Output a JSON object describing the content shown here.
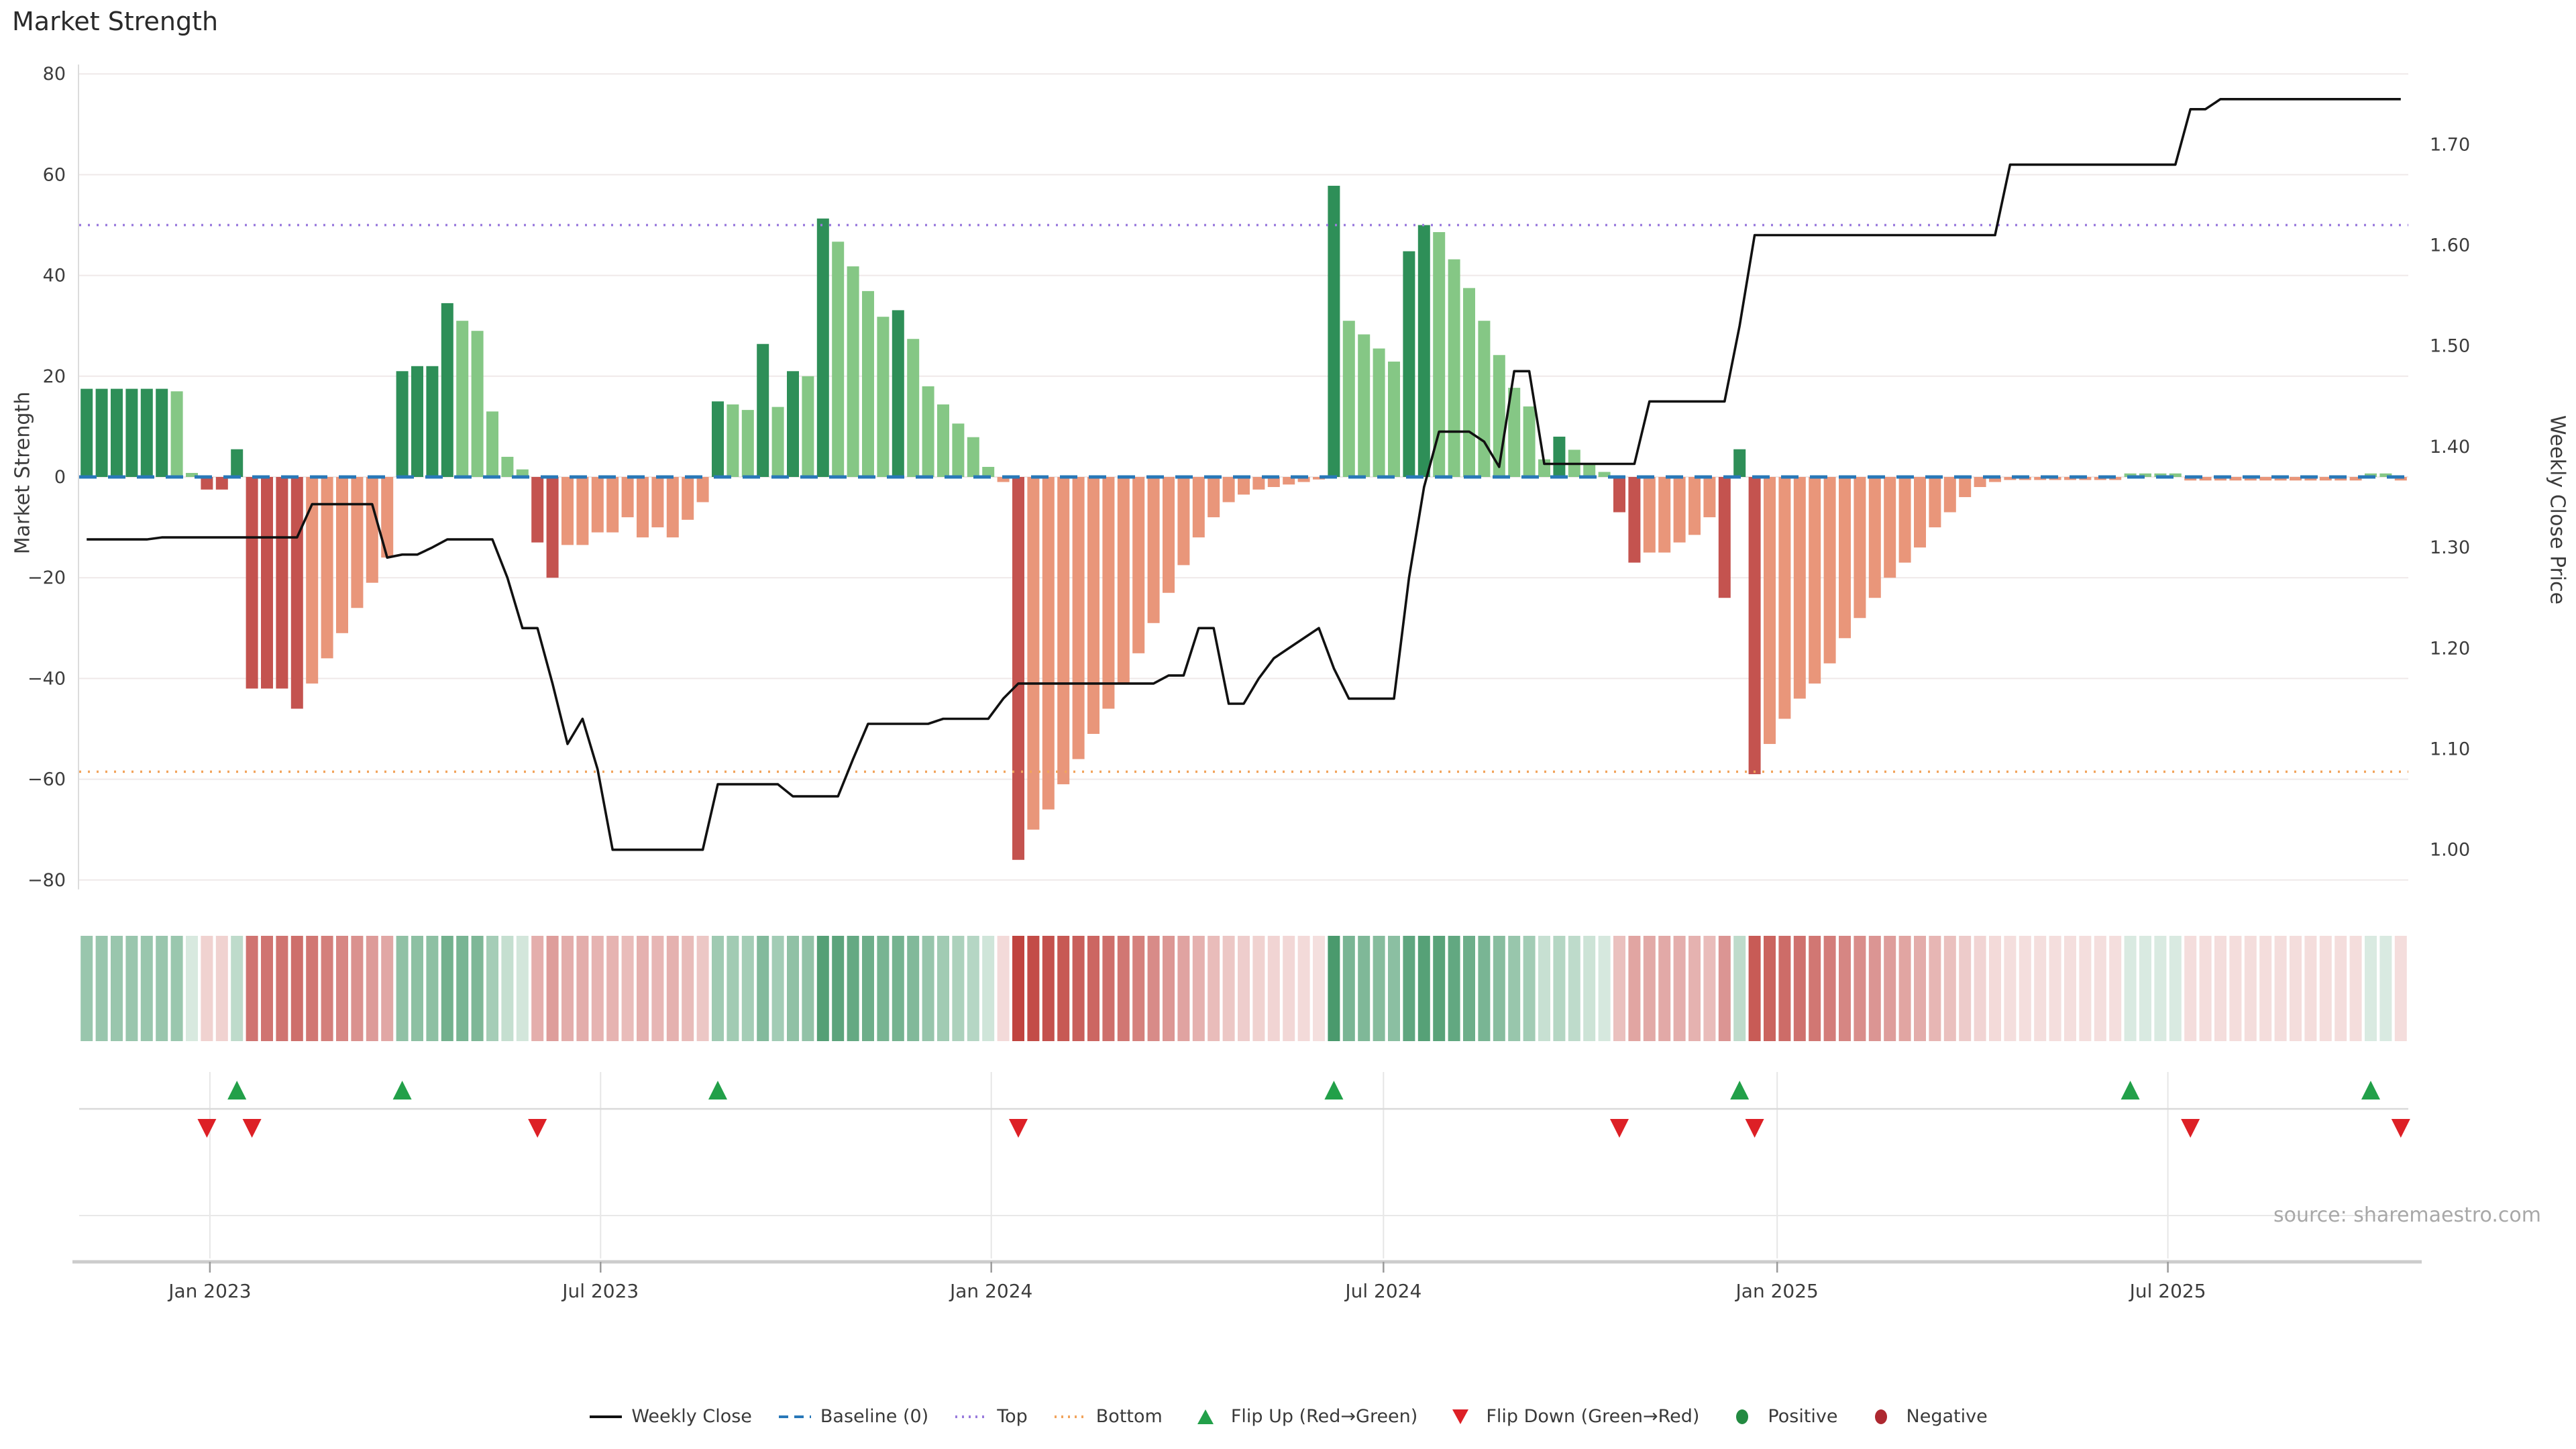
{
  "meta": {
    "title": "Market Strength",
    "source": "source: sharemaestro.com"
  },
  "axes": {
    "left_label": "Market Strength",
    "right_label": "Weekly Close Price",
    "left_ticks": [
      80,
      60,
      40,
      20,
      0,
      -20,
      -40,
      -60,
      -80
    ],
    "right_ticks": [
      "1.00",
      "1.10",
      "1.20",
      "1.30",
      "1.40",
      "1.50",
      "1.60",
      "1.70"
    ],
    "x_ticks": [
      {
        "label": "Jan 2023",
        "week": 8.7
      },
      {
        "label": "Jul 2023",
        "week": 34.7
      },
      {
        "label": "Jan 2024",
        "week": 60.7
      },
      {
        "label": "Jul 2024",
        "week": 86.8
      },
      {
        "label": "Jan 2025",
        "week": 113.0
      },
      {
        "label": "Jul 2025",
        "week": 139.0
      }
    ]
  },
  "legend": {
    "items": [
      {
        "type": "solid-line",
        "color": "#111111",
        "label": "Weekly Close"
      },
      {
        "type": "dashed-line",
        "color": "#2878b8",
        "label": "Baseline (0)"
      },
      {
        "type": "dotted-line",
        "color": "#9a7bdd",
        "label": "Top"
      },
      {
        "type": "dotted-line",
        "color": "#f2a45c",
        "label": "Bottom"
      },
      {
        "type": "triangle-up",
        "color": "#22a049",
        "label": "Flip Up (Red→Green)"
      },
      {
        "type": "triangle-down",
        "color": "#dd2026",
        "label": "Flip Down (Green→Red)"
      },
      {
        "type": "circle",
        "color": "#238a41",
        "label": "Positive"
      },
      {
        "type": "circle",
        "color": "#ad2830",
        "label": "Negative"
      }
    ]
  },
  "chart_data": {
    "type": "bar",
    "title": "Market Strength",
    "ylabel": "Market Strength",
    "y2label": "Weekly Close Price",
    "ylim": [
      -80,
      80
    ],
    "y2lim": [
      0.93,
      1.785
    ],
    "baseline": 0,
    "top_level": 50,
    "bottom_level": -58.5,
    "price_equals": "1.37 + strength/200",
    "weeks_start": "Nov 2022",
    "bars": [
      [
        17.5,
        "d"
      ],
      [
        17.5,
        "d"
      ],
      [
        17.5,
        "d"
      ],
      [
        17.5,
        "d"
      ],
      [
        17.5,
        "d"
      ],
      [
        17.5,
        "d"
      ],
      [
        17,
        "l"
      ],
      [
        0.8,
        "l"
      ],
      [
        -2.5,
        "d"
      ],
      [
        -2.5,
        "d"
      ],
      [
        5.5,
        "d"
      ],
      [
        -42,
        "d"
      ],
      [
        -42,
        "d"
      ],
      [
        -42,
        "d"
      ],
      [
        -46,
        "d"
      ],
      [
        -41,
        "l"
      ],
      [
        -36,
        "l"
      ],
      [
        -31,
        "l"
      ],
      [
        -26,
        "l"
      ],
      [
        -21,
        "l"
      ],
      [
        -16,
        "l"
      ],
      [
        21,
        "d"
      ],
      [
        22,
        "d"
      ],
      [
        22,
        "d"
      ],
      [
        34.5,
        "d"
      ],
      [
        31,
        "l"
      ],
      [
        29,
        "l"
      ],
      [
        13,
        "l"
      ],
      [
        4,
        "l"
      ],
      [
        1.5,
        "l"
      ],
      [
        -13,
        "d"
      ],
      [
        -20,
        "d"
      ],
      [
        -13.5,
        "l"
      ],
      [
        -13.5,
        "l"
      ],
      [
        -11,
        "l"
      ],
      [
        -11,
        "l"
      ],
      [
        -8,
        "l"
      ],
      [
        -12,
        "l"
      ],
      [
        -10,
        "l"
      ],
      [
        -12,
        "l"
      ],
      [
        -8.5,
        "l"
      ],
      [
        -5,
        "l"
      ],
      [
        15,
        "d"
      ],
      [
        14.4,
        "l"
      ],
      [
        13.3,
        "l"
      ],
      [
        26.4,
        "d"
      ],
      [
        13.9,
        "l"
      ],
      [
        21,
        "d"
      ],
      [
        20,
        "l"
      ],
      [
        51.3,
        "d"
      ],
      [
        46.7,
        "l"
      ],
      [
        41.8,
        "l"
      ],
      [
        36.9,
        "l"
      ],
      [
        31.8,
        "l"
      ],
      [
        33.1,
        "d"
      ],
      [
        27.4,
        "l"
      ],
      [
        18,
        "l"
      ],
      [
        14.4,
        "l"
      ],
      [
        10.6,
        "l"
      ],
      [
        7.9,
        "l"
      ],
      [
        2,
        "l"
      ],
      [
        -1,
        "l"
      ],
      [
        -76,
        "d"
      ],
      [
        -70,
        "l"
      ],
      [
        -66,
        "l"
      ],
      [
        -61,
        "l"
      ],
      [
        -56,
        "l"
      ],
      [
        -51,
        "l"
      ],
      [
        -46,
        "l"
      ],
      [
        -41,
        "l"
      ],
      [
        -35,
        "l"
      ],
      [
        -29,
        "l"
      ],
      [
        -23,
        "l"
      ],
      [
        -17.5,
        "l"
      ],
      [
        -12,
        "l"
      ],
      [
        -8,
        "l"
      ],
      [
        -5,
        "l"
      ],
      [
        -3.5,
        "l"
      ],
      [
        -2.5,
        "l"
      ],
      [
        -2,
        "l"
      ],
      [
        -1.5,
        "l"
      ],
      [
        -1,
        "l"
      ],
      [
        -0.5,
        "l"
      ],
      [
        57.8,
        "d"
      ],
      [
        31,
        "l"
      ],
      [
        28.3,
        "l"
      ],
      [
        25.5,
        "l"
      ],
      [
        22.9,
        "l"
      ],
      [
        44.8,
        "d"
      ],
      [
        50,
        "d"
      ],
      [
        48.6,
        "l"
      ],
      [
        43.2,
        "l"
      ],
      [
        37.5,
        "l"
      ],
      [
        31,
        "l"
      ],
      [
        24.2,
        "l"
      ],
      [
        17.7,
        "l"
      ],
      [
        14,
        "l"
      ],
      [
        3.5,
        "l"
      ],
      [
        8,
        "d"
      ],
      [
        5.4,
        "l"
      ],
      [
        2.5,
        "l"
      ],
      [
        1,
        "l"
      ],
      [
        -7,
        "d"
      ],
      [
        -17,
        "d"
      ],
      [
        -15,
        "l"
      ],
      [
        -15,
        "l"
      ],
      [
        -13,
        "l"
      ],
      [
        -11.5,
        "l"
      ],
      [
        -8,
        "l"
      ],
      [
        -24,
        "d"
      ],
      [
        5.5,
        "d"
      ],
      [
        -59,
        "d"
      ],
      [
        -53,
        "l"
      ],
      [
        -48,
        "l"
      ],
      [
        -44,
        "l"
      ],
      [
        -41,
        "l"
      ],
      [
        -37,
        "l"
      ],
      [
        -32,
        "l"
      ],
      [
        -28,
        "l"
      ],
      [
        -24,
        "l"
      ],
      [
        -20,
        "l"
      ],
      [
        -17,
        "l"
      ],
      [
        -14,
        "l"
      ],
      [
        -10,
        "l"
      ],
      [
        -7,
        "l"
      ],
      [
        -4,
        "l"
      ],
      [
        -2,
        "l"
      ],
      [
        -1,
        "l"
      ],
      [
        -0.6,
        "l"
      ],
      [
        -0.6,
        "l"
      ],
      [
        -0.6,
        "l"
      ],
      [
        -0.6,
        "l"
      ],
      [
        -0.6,
        "l"
      ],
      [
        -0.6,
        "l"
      ],
      [
        -0.6,
        "l"
      ],
      [
        -0.6,
        "l"
      ],
      [
        0.7,
        "l"
      ],
      [
        0.7,
        "l"
      ],
      [
        0.7,
        "l"
      ],
      [
        0.7,
        "l"
      ],
      [
        -0.7,
        "l"
      ],
      [
        -0.7,
        "l"
      ],
      [
        -0.7,
        "l"
      ],
      [
        -0.7,
        "l"
      ],
      [
        -0.7,
        "l"
      ],
      [
        -0.7,
        "l"
      ],
      [
        -0.7,
        "l"
      ],
      [
        -0.7,
        "l"
      ],
      [
        -0.7,
        "l"
      ],
      [
        -0.7,
        "l"
      ],
      [
        -0.7,
        "l"
      ],
      [
        -0.7,
        "l"
      ],
      [
        0.7,
        "l"
      ],
      [
        0.7,
        "l"
      ],
      [
        -0.7,
        "l"
      ]
    ],
    "weekly_close": [
      1.308,
      1.308,
      1.308,
      1.308,
      1.308,
      1.31,
      1.31,
      1.31,
      1.31,
      1.31,
      1.31,
      1.31,
      1.31,
      1.31,
      1.31,
      1.343,
      1.343,
      1.343,
      1.343,
      1.343,
      1.29,
      1.293,
      1.293,
      1.3,
      1.308,
      1.308,
      1.308,
      1.308,
      1.27,
      1.22,
      1.22,
      1.165,
      1.105,
      1.13,
      1.08,
      1.0,
      1.0,
      1.0,
      1.0,
      1.0,
      1.0,
      1.0,
      1.065,
      1.065,
      1.065,
      1.065,
      1.065,
      1.053,
      1.053,
      1.053,
      1.053,
      1.09,
      1.125,
      1.125,
      1.125,
      1.125,
      1.125,
      1.13,
      1.13,
      1.13,
      1.13,
      1.15,
      1.165,
      1.165,
      1.165,
      1.165,
      1.165,
      1.165,
      1.165,
      1.165,
      1.165,
      1.165,
      1.173,
      1.173,
      1.22,
      1.22,
      1.145,
      1.145,
      1.17,
      1.19,
      1.2,
      1.21,
      1.22,
      1.18,
      1.15,
      1.15,
      1.15,
      1.15,
      1.27,
      1.36,
      1.415,
      1.415,
      1.415,
      1.405,
      1.38,
      1.475,
      1.475,
      1.383,
      1.383,
      1.383,
      1.383,
      1.383,
      1.383,
      1.383,
      1.445,
      1.445,
      1.445,
      1.445,
      1.445,
      1.445,
      1.52,
      1.61,
      1.61,
      1.61,
      1.61,
      1.61,
      1.61,
      1.61,
      1.61,
      1.61,
      1.61,
      1.61,
      1.61,
      1.61,
      1.61,
      1.61,
      1.61,
      1.61,
      1.68,
      1.68,
      1.68,
      1.68,
      1.68,
      1.68,
      1.68,
      1.68,
      1.68,
      1.68,
      1.68,
      1.68,
      1.735,
      1.735,
      1.745,
      1.745,
      1.745,
      1.745,
      1.745,
      1.745,
      1.745,
      1.745,
      1.745,
      1.745,
      1.745,
      1.745,
      1.745
    ],
    "flip_up_weeks": [
      10,
      21,
      42,
      83,
      110,
      136,
      152
    ],
    "flip_down_weeks": [
      8,
      11,
      30,
      62,
      102,
      111,
      140,
      154
    ],
    "colors": {
      "dark_green": "#2e8f58",
      "light_green": "#85c785",
      "dark_red": "#c4534f",
      "salmon": "#e9967a",
      "heat_green": "#2e8b57",
      "heat_red": "#c0443f",
      "close_line": "#111111",
      "baseline": "#2878b8",
      "top": "#9a7bdd",
      "bottom": "#f2a45c",
      "flip_up": "#22a049",
      "flip_down": "#dd2026",
      "grid": "#efe9e9",
      "panel_line": "#d9d9d9",
      "axis_line": "#cccccc",
      "tick_text": "#3c3c3c"
    },
    "legend_position": "bottom center",
    "grid": true
  }
}
